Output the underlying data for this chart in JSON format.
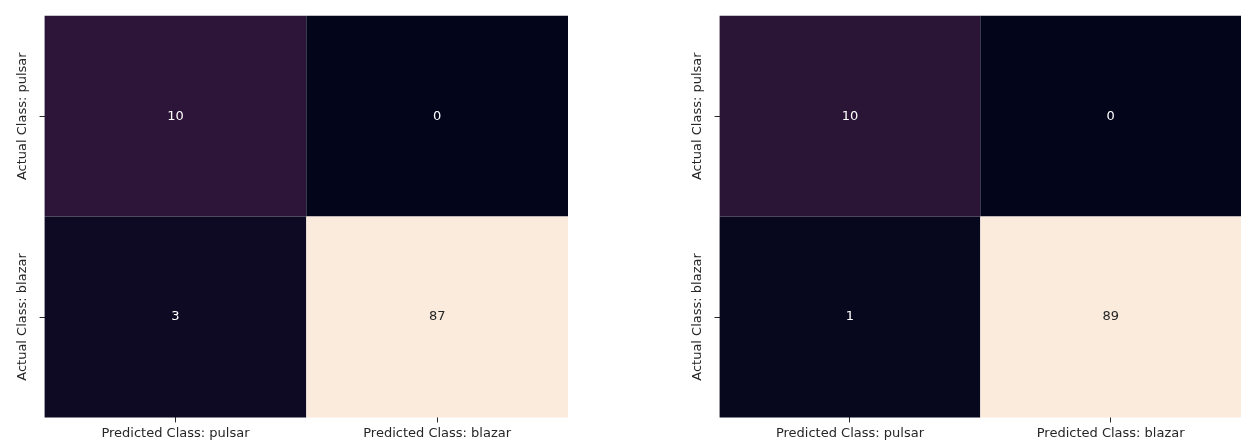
{
  "chart_data": [
    {
      "type": "heatmap",
      "categories": [
        "Predicted Class: pulsar",
        "Predicted Class: blazar"
      ],
      "y_categories": [
        "Actual Class: pulsar",
        "Actual Class: blazar"
      ],
      "cells": [
        [
          10,
          0
        ],
        [
          3,
          87
        ]
      ],
      "data_labels": true
    },
    {
      "type": "heatmap",
      "categories": [
        "Predicted Class: pulsar",
        "Predicted Class: blazar"
      ],
      "y_categories": [
        "Actual Class: pulsar",
        "Actual Class: blazar"
      ],
      "cells": [
        [
          10,
          0
        ],
        [
          1,
          89
        ]
      ],
      "data_labels": true
    }
  ]
}
